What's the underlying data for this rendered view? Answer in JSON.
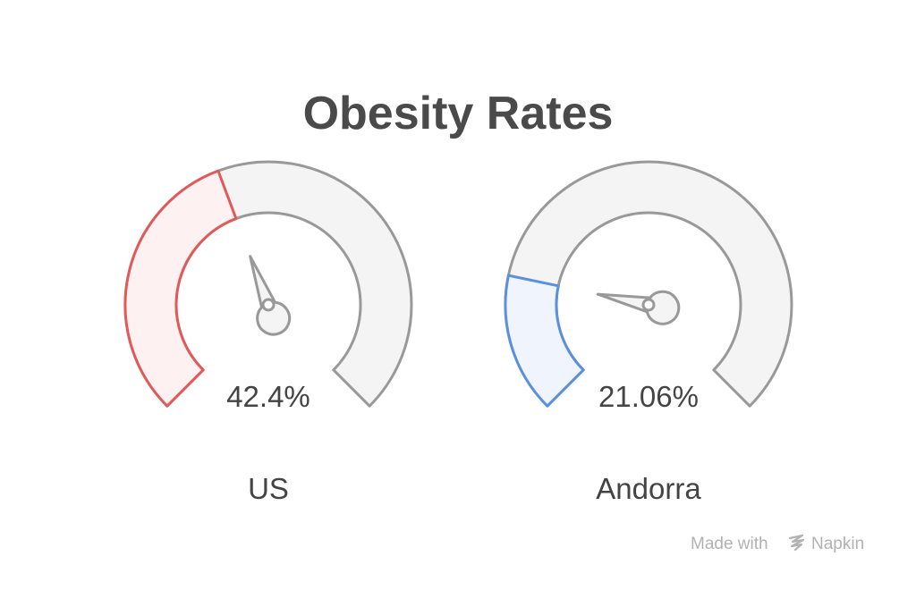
{
  "chart_data": {
    "type": "gauge",
    "title": "Obesity Rates",
    "unit": "%",
    "range": [
      0,
      100
    ],
    "gauges": [
      {
        "category": "US",
        "value": 42.4,
        "value_label": "42.4%",
        "color": "#e05a5a",
        "fill_color": "#fdf1f1"
      },
      {
        "category": "Andorra",
        "value": 21.06,
        "value_label": "21.06%",
        "color": "#5b8fe0",
        "fill_color": "#f0f5fd"
      }
    ],
    "track_color": "#f4f4f4",
    "outline_color": "#999999"
  },
  "watermark": {
    "text": "Made with",
    "brand": "Napkin"
  }
}
